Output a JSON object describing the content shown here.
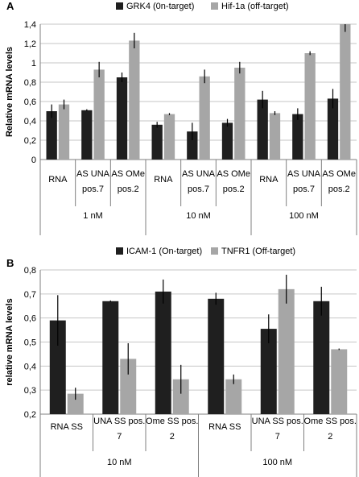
{
  "chart_data": [
    {
      "panel": "A",
      "type": "bar",
      "ylabel": "Relative mRNA levels",
      "ylim": [
        0,
        1.4
      ],
      "ytick_labels": [
        "0",
        "0,2",
        "0,4",
        "0,6",
        "0,8",
        "1",
        "1,2",
        "1,4"
      ],
      "grid": true,
      "legend_position": "top",
      "categories": [
        [
          "RNA"
        ],
        [
          "AS UNA",
          "pos.7"
        ],
        [
          "AS OMe",
          "pos.2"
        ],
        [
          "RNA"
        ],
        [
          "AS UNA",
          "pos.7"
        ],
        [
          "AS OMe",
          "pos.2"
        ],
        [
          "RNA"
        ],
        [
          "AS UNA",
          "pos.7"
        ],
        [
          "AS OMe",
          "pos.2"
        ]
      ],
      "groups": [
        {
          "label": "1 nM",
          "count": 3
        },
        {
          "label": "10 nM",
          "count": 3
        },
        {
          "label": "100 nM",
          "count": 3
        }
      ],
      "series": [
        {
          "name": "GRK4 (0n-target)",
          "color": "#1f1f1f",
          "values": [
            0.5,
            0.51,
            0.85,
            0.36,
            0.29,
            0.38,
            0.62,
            0.47,
            0.63
          ],
          "errors": [
            0.07,
            0.01,
            0.05,
            0.03,
            0.09,
            0.04,
            0.09,
            0.06,
            0.1
          ]
        },
        {
          "name": "Hif-1a (off-target)",
          "color": "#a6a6a6",
          "values": [
            0.57,
            0.93,
            1.23,
            0.47,
            0.86,
            0.95,
            0.48,
            1.1,
            1.4
          ],
          "errors": [
            0.05,
            0.08,
            0.08,
            0.01,
            0.07,
            0.06,
            0.02,
            0.02,
            0.08
          ]
        }
      ]
    },
    {
      "panel": "B",
      "type": "bar",
      "ylabel": "relative mRNA levels",
      "ylim": [
        0.2,
        0.8
      ],
      "ytick_labels": [
        "0,2",
        "0,3",
        "0,4",
        "0,5",
        "0,6",
        "0,7",
        "0,8"
      ],
      "grid": true,
      "legend_position": "top",
      "categories": [
        [
          "RNA SS"
        ],
        [
          "UNA SS pos.",
          "7"
        ],
        [
          "Ome SS pos.",
          "2"
        ],
        [
          "RNA SS"
        ],
        [
          "UNA SS pos.",
          "7"
        ],
        [
          "Ome SS pos.",
          "2"
        ]
      ],
      "groups": [
        {
          "label": "10 nM",
          "count": 3
        },
        {
          "label": "100 nM",
          "count": 3
        }
      ],
      "series": [
        {
          "name": "ICAM-1 (On-target)",
          "color": "#1f1f1f",
          "values": [
            0.59,
            0.67,
            0.71,
            0.68,
            0.555,
            0.67
          ],
          "errors": [
            0.105,
            0.003,
            0.05,
            0.025,
            0.06,
            0.06
          ]
        },
        {
          "name": "TNFR1 (Off-target)",
          "color": "#a6a6a6",
          "values": [
            0.285,
            0.43,
            0.345,
            0.345,
            0.72,
            0.47
          ],
          "errors": [
            0.025,
            0.065,
            0.06,
            0.02,
            0.06,
            0.003
          ]
        }
      ]
    }
  ]
}
